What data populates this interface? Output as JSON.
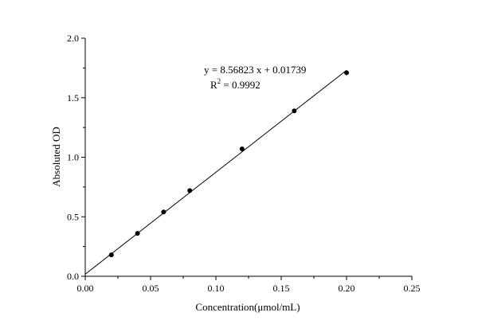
{
  "chart_data": {
    "type": "scatter",
    "title": "",
    "xlabel": "Concentration(μmol/mL)",
    "ylabel": "Absoluted OD",
    "xlim": [
      0,
      0.25
    ],
    "ylim": [
      0,
      2.0
    ],
    "xticks": [
      0,
      0.05,
      0.1,
      0.15,
      0.2,
      0.25
    ],
    "xtick_labels": [
      "0.00",
      "0.05",
      "0.10",
      "0.15",
      "0.20",
      "0.25"
    ],
    "yticks": [
      0,
      0.5,
      1.0,
      1.5,
      2.0
    ],
    "ytick_labels": [
      "0.0",
      "0.5",
      "1.0",
      "1.5",
      "2.0"
    ],
    "grid": false,
    "legend": "none",
    "points": [
      {
        "x": 0.02,
        "y": 0.18
      },
      {
        "x": 0.04,
        "y": 0.36
      },
      {
        "x": 0.06,
        "y": 0.54
      },
      {
        "x": 0.08,
        "y": 0.72
      },
      {
        "x": 0.12,
        "y": 1.07
      },
      {
        "x": 0.16,
        "y": 1.39
      },
      {
        "x": 0.2,
        "y": 1.71
      }
    ],
    "fit": {
      "type": "linear",
      "slope": 8.56823,
      "intercept": 0.01739,
      "x_range": [
        0,
        0.2
      ],
      "equation_text": "y = 8.56823 x + 0.01739",
      "r2_prefix": "R",
      "r2_sup": "2",
      "r2_value": " = 0.9992"
    },
    "colors": {
      "marker": "#000000",
      "line": "#000000",
      "axis": "#000000"
    }
  }
}
